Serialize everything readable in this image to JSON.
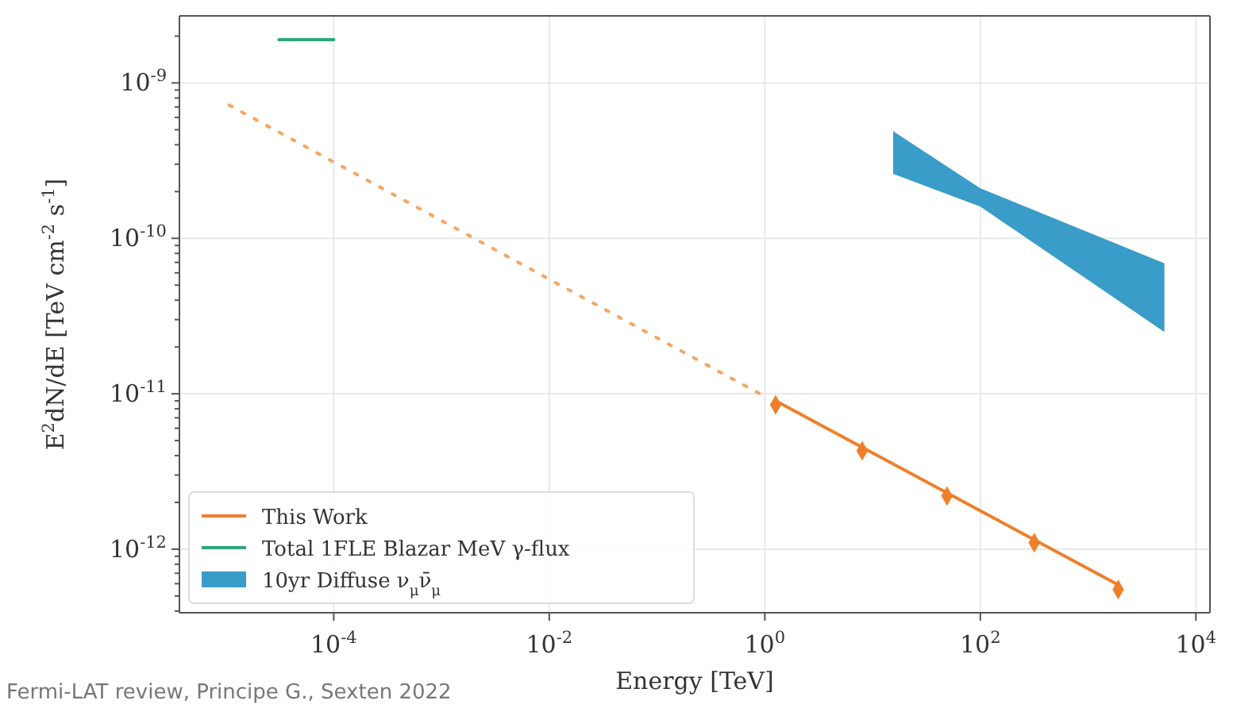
{
  "chart_data": {
    "type": "line",
    "xlabel": "Energy [TeV]",
    "ylabel": "E$^{2}$dN/dE [TeV cm$^{-2}$ s$^{-1}$]",
    "log": "xy",
    "grid": true,
    "legend": "bottom left",
    "xlim": [
      3.7e-06,
      13500
    ],
    "xticks": [
      {
        "value": 0.0001,
        "label": "10$^{-4}$"
      },
      {
        "value": 0.01,
        "label": "10$^{-2}$"
      },
      {
        "value": 1,
        "label": "10$^{0}$"
      },
      {
        "value": 100,
        "label": "10$^{2}$"
      },
      {
        "value": 10000,
        "label": "10$^{4}$"
      }
    ],
    "ylim": [
      3.9e-13,
      2.7e-09
    ],
    "yticks": [
      {
        "value": 1e-12,
        "label": "10$^{-12}$"
      },
      {
        "value": 1e-11,
        "label": "10$^{-11}$"
      },
      {
        "value": 1e-10,
        "label": "10$^{-10}$"
      },
      {
        "value": 1e-09,
        "label": "10$^{-9}$"
      },
      {
        "value": 4e-13,
        "label": null
      },
      {
        "value": 5e-13,
        "label": null
      },
      {
        "value": 6e-13,
        "label": null
      },
      {
        "value": 7e-13,
        "label": null
      },
      {
        "value": 8e-13,
        "label": null
      },
      {
        "value": 9e-13,
        "label": null
      },
      {
        "value": 2e-12,
        "label": null
      },
      {
        "value": 3e-12,
        "label": null
      },
      {
        "value": 4e-12,
        "label": null
      },
      {
        "value": 5e-12,
        "label": null
      },
      {
        "value": 6e-12,
        "label": null
      },
      {
        "value": 7e-12,
        "label": null
      },
      {
        "value": 8e-12,
        "label": null
      },
      {
        "value": 9e-12,
        "label": null
      },
      {
        "value": 2e-11,
        "label": null
      },
      {
        "value": 3e-11,
        "label": null
      },
      {
        "value": 4e-11,
        "label": null
      },
      {
        "value": 5e-11,
        "label": null
      },
      {
        "value": 6e-11,
        "label": null
      },
      {
        "value": 7e-11,
        "label": null
      },
      {
        "value": 8e-11,
        "label": null
      },
      {
        "value": 9e-11,
        "label": null
      },
      {
        "value": 2e-10,
        "label": null
      },
      {
        "value": 3e-10,
        "label": null
      },
      {
        "value": 4e-10,
        "label": null
      },
      {
        "value": 5e-10,
        "label": null
      },
      {
        "value": 6e-10,
        "label": null
      },
      {
        "value": 7e-10,
        "label": null
      },
      {
        "value": 8e-10,
        "label": null
      },
      {
        "value": 9e-10,
        "label": null
      },
      {
        "value": 2e-09,
        "label": null
      }
    ],
    "series": [
      {
        "type": "line",
        "color": "#f5a663",
        "line_style": "dotted",
        "x": [
          1.07e-05,
          0.9
        ],
        "values": [
          7.2e-10,
          1e-11
        ]
      },
      {
        "type": "line",
        "name": "This Work",
        "color": "#f07f2a",
        "line_style": "solid",
        "x": [
          1.3,
          1900
        ],
        "values": [
          8.9e-12,
          5.9e-13
        ]
      },
      {
        "type": "scatter",
        "color": "#f07f2a",
        "marker": "diamond",
        "x": [
          1.26,
          8,
          49,
          316,
          1900
        ],
        "values": [
          8.5e-12,
          4.3e-12,
          2.2e-12,
          1.1e-12,
          5.5e-13
        ]
      },
      {
        "type": "line",
        "name": "Total 1FLE Blazar MeV γ-flux",
        "color": "#2ca87a",
        "line_style": "solid",
        "x": [
          3.1e-05,
          0.0001
        ],
        "values": [
          1.9e-09,
          1.9e-09
        ]
      },
      {
        "type": "area",
        "name": "10yr Diffuse ν$_{μ}$ν̄$_{μ}$",
        "color": "#3a9cc8",
        "x": [
          15.5,
          100,
          5100
        ],
        "values": [
          null,
          null,
          null
        ],
        "lower": [
          2.6e-10,
          1.6e-10,
          2.5e-11
        ],
        "upper": [
          4.9e-10,
          2.1e-10,
          6.9e-11
        ]
      }
    ],
    "annotations": [
      "Fermi-LAT review, Principe G., Sexten 2022"
    ]
  }
}
